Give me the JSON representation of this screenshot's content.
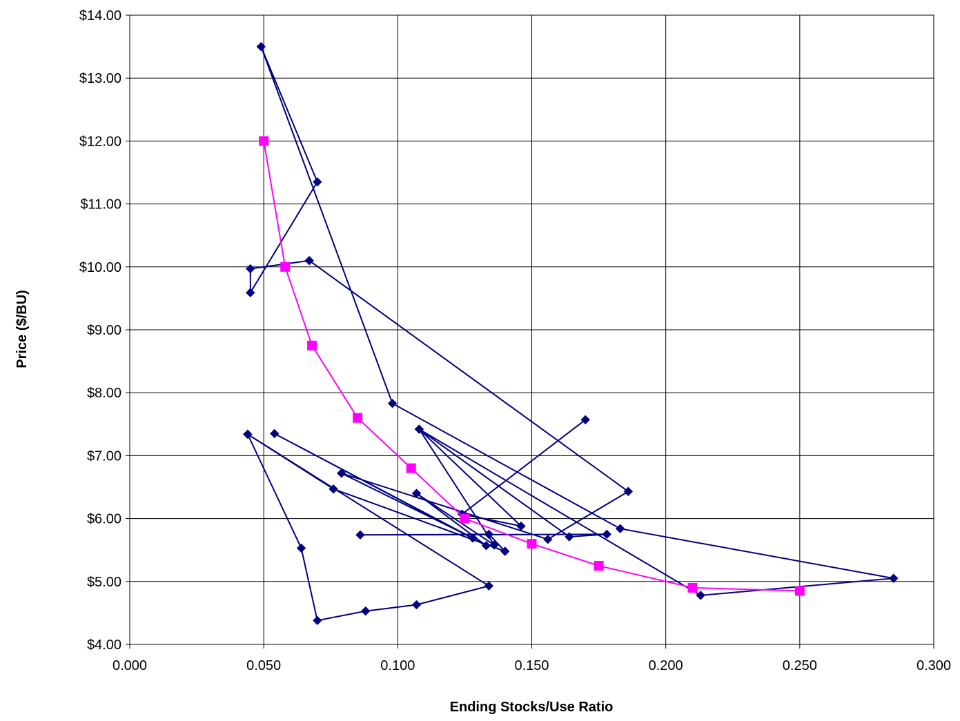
{
  "chart_data": {
    "type": "scatter",
    "title": "",
    "xlabel": "Ending Stocks/Use Ratio",
    "ylabel": "Price ($/BU)",
    "xlim": [
      0,
      0.3
    ],
    "ylim": [
      4,
      14
    ],
    "grid": true,
    "legend": "none",
    "x_ticks": [
      0,
      0.05,
      0.1,
      0.15,
      0.2,
      0.25,
      0.3
    ],
    "x_tick_labels": [
      "0.000",
      "0.050",
      "0.100",
      "0.150",
      "0.200",
      "0.250",
      "0.300"
    ],
    "y_ticks": [
      4,
      5,
      6,
      7,
      8,
      9,
      10,
      11,
      12,
      13,
      14
    ],
    "y_tick_labels": [
      "$4.00",
      "$5.00",
      "$6.00",
      "$7.00",
      "$8.00",
      "$9.00",
      "$10.00",
      "$11.00",
      "$12.00",
      "$13.00",
      "$14.00"
    ],
    "series": [
      {
        "color": "#000080",
        "marker": "diamond",
        "line": "connected",
        "points": [
          [
            0.17,
            7.57
          ],
          [
            0.124,
            6.07
          ],
          [
            0.146,
            5.88
          ],
          [
            0.108,
            7.42
          ],
          [
            0.136,
            5.58
          ],
          [
            0.107,
            6.4
          ],
          [
            0.133,
            5.57
          ],
          [
            0.054,
            7.35
          ],
          [
            0.128,
            5.69
          ],
          [
            0.079,
            6.72
          ],
          [
            0.156,
            5.67
          ],
          [
            0.186,
            6.43
          ],
          [
            0.067,
            10.1
          ],
          [
            0.045,
            9.97
          ],
          [
            0.045,
            9.59
          ],
          [
            0.07,
            11.35
          ],
          [
            0.049,
            13.5
          ],
          [
            0.098,
            7.83
          ],
          [
            0.183,
            5.84
          ],
          [
            0.285,
            5.05
          ],
          [
            0.213,
            4.78
          ],
          [
            0.108,
            7.42
          ],
          [
            0.164,
            5.71
          ],
          [
            0.178,
            5.75
          ],
          [
            0.086,
            5.74
          ],
          [
            0.134,
            5.75
          ],
          [
            0.14,
            5.48
          ],
          [
            0.076,
            6.47
          ],
          [
            0.044,
            7.34
          ],
          [
            0.064,
            5.53
          ],
          [
            0.07,
            4.38
          ],
          [
            0.088,
            4.53
          ],
          [
            0.107,
            4.63
          ],
          [
            0.134,
            4.93
          ],
          [
            0.044,
            7.34
          ]
        ]
      },
      {
        "color": "#FF00FF",
        "marker": "square",
        "line": "connected",
        "points": [
          [
            0.05,
            12.0
          ],
          [
            0.058,
            10.0
          ],
          [
            0.068,
            8.75
          ],
          [
            0.085,
            7.6
          ],
          [
            0.105,
            6.8
          ],
          [
            0.125,
            6.0
          ],
          [
            0.15,
            5.6
          ],
          [
            0.175,
            5.25
          ],
          [
            0.21,
            4.9
          ],
          [
            0.25,
            4.85
          ]
        ]
      }
    ]
  }
}
